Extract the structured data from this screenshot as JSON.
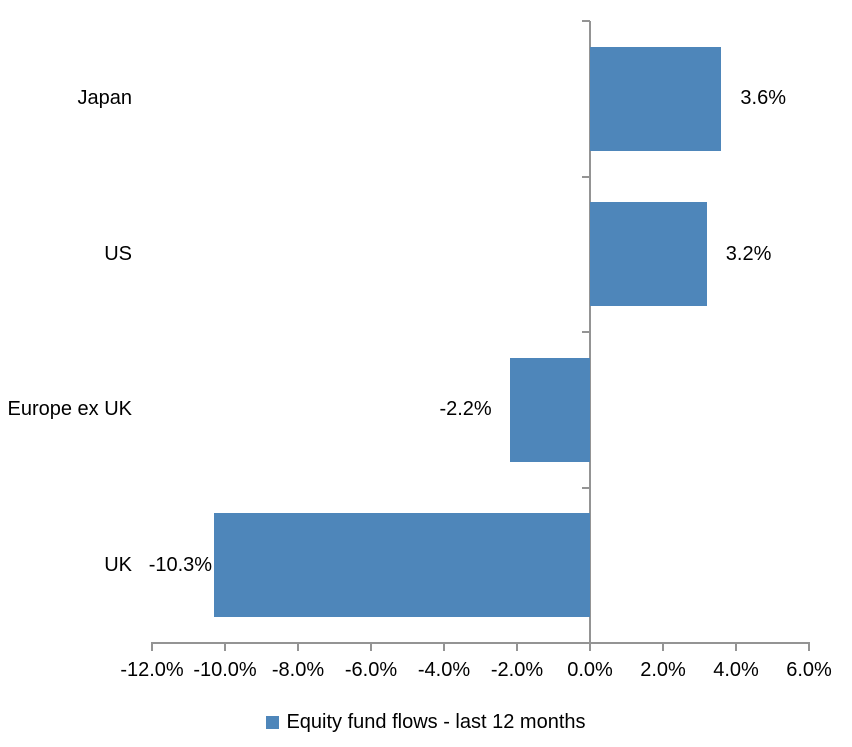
{
  "chart_data": {
    "type": "bar",
    "orientation": "horizontal",
    "title": "",
    "categories": [
      "Japan",
      "US",
      "Europe ex UK",
      "UK"
    ],
    "series": [
      {
        "name": "Equity fund flows - last 12 months",
        "values": [
          3.6,
          3.2,
          -2.2,
          -10.3
        ]
      }
    ],
    "data_labels": [
      "3.6%",
      "3.2%",
      "-2.2%",
      "-10.3%"
    ],
    "x_tick_labels": [
      "-12.0%",
      "-10.0%",
      "-8.0%",
      "-6.0%",
      "-4.0%",
      "-2.0%",
      "0.0%",
      "2.0%",
      "4.0%",
      "6.0%"
    ],
    "x_tick_values": [
      -12,
      -10,
      -8,
      -6,
      -4,
      -2,
      0,
      2,
      4,
      6
    ],
    "xlim": [
      -12,
      6
    ],
    "ylabel": "",
    "xlabel": "",
    "grid": false,
    "legend_position": "bottom",
    "legend_marker": "legend-square-icon",
    "colors": {
      "bar": "#4e86ba",
      "axis": "#949494",
      "text": "#000000",
      "background": "#ffffff"
    }
  }
}
